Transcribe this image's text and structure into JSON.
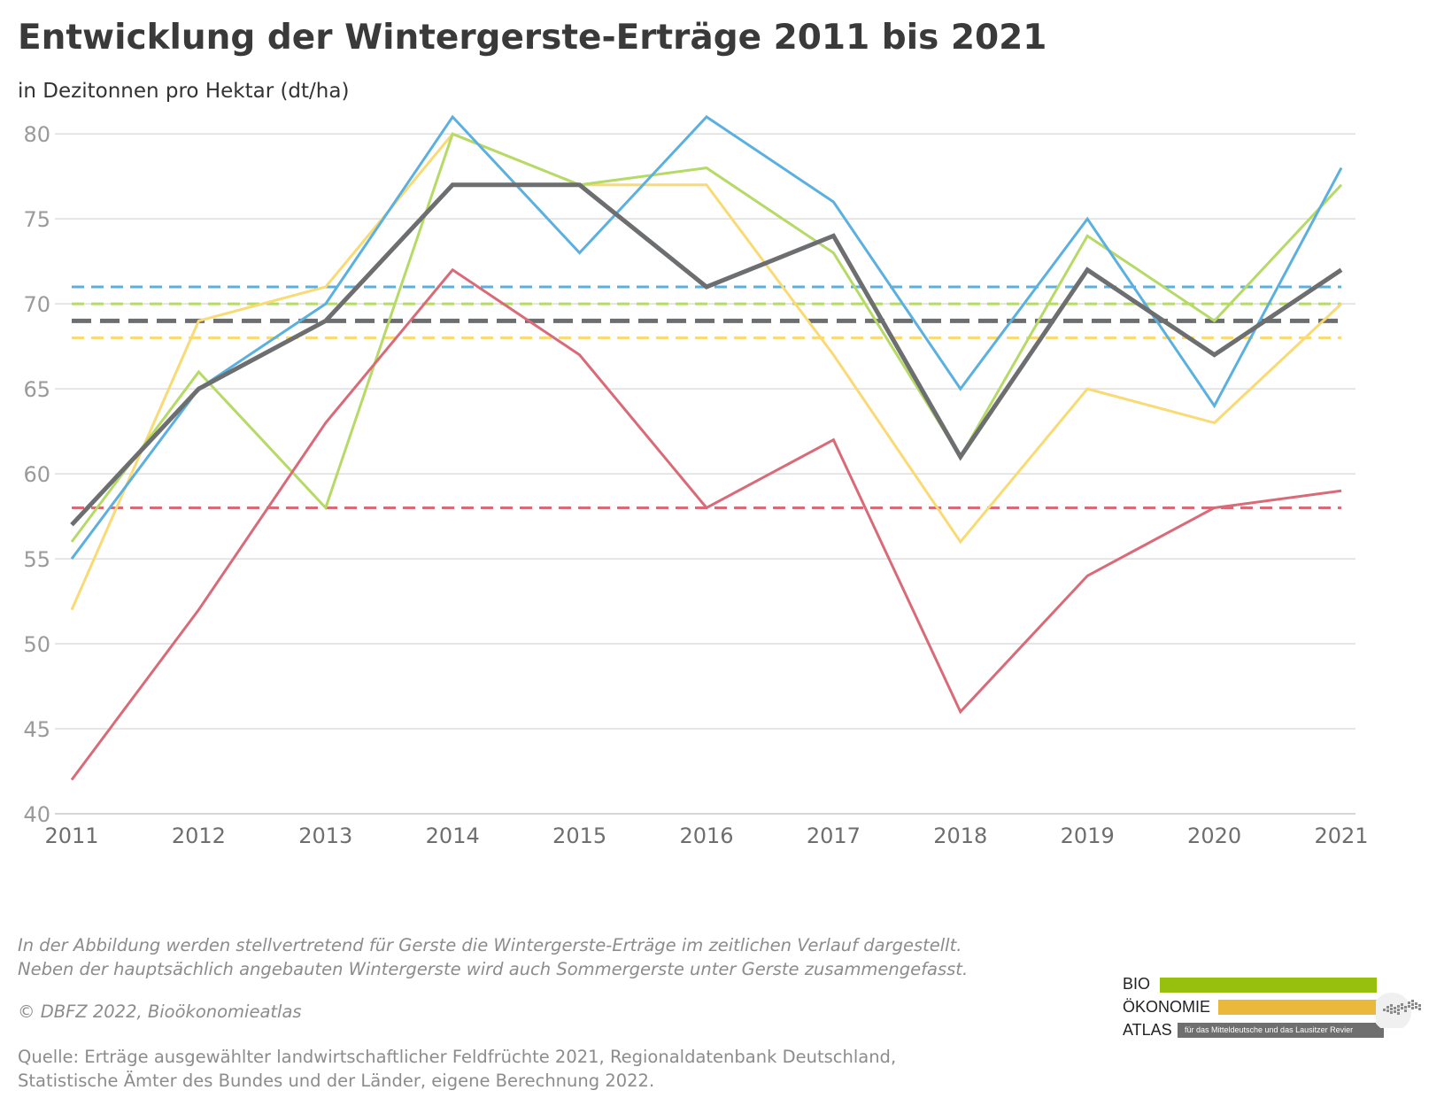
{
  "title": "Entwicklung der Wintergerste-Erträge 2011 bis 2021",
  "subtitle": "in Dezitonnen pro Hektar (dt/ha)",
  "notes": [
    "In der Abbildung werden stellvertretend für Gerste die Wintergerste-Erträge im zeitlichen Verlauf dargestellt.",
    "Neben der hauptsächlich angebauten Wintergerste wird auch Sommergerste unter Gerste zusammengefasst."
  ],
  "copyright": "© DBFZ 2022, Bioökonomieatlas",
  "source": [
    "Quelle: Erträge ausgewählter landwirtschaftlicher Feldfrüchte 2021, Regionaldatenbank Deutschland,",
    "Statistische Ämter des Bundes und der Länder, eigene Berechnung 2022."
  ],
  "logo": {
    "line1": "BIO",
    "line2": "ÖKONOMIE",
    "line3": "ATLAS",
    "tagline": "für das Mitteldeutsche und das Lausitzer Revier",
    "colors": [
      "#97bf0d",
      "#eab83b",
      "#6f6f6f"
    ]
  },
  "chart_data": {
    "type": "line",
    "x": [
      "2011",
      "2012",
      "2013",
      "2014",
      "2015",
      "2016",
      "2017",
      "2018",
      "2019",
      "2020",
      "2021"
    ],
    "ylim": [
      40,
      81
    ],
    "yticks": [
      40,
      45,
      50,
      55,
      60,
      65,
      70,
      75,
      80
    ],
    "grid": true,
    "legend": "none",
    "series": [
      {
        "color": "#f9da74",
        "width": 3,
        "values": [
          52,
          69,
          71,
          80,
          77,
          77,
          67,
          56,
          65,
          63,
          70
        ],
        "average": 68
      },
      {
        "color": "#b5da66",
        "width": 3,
        "values": [
          56,
          66,
          58,
          80,
          77,
          78,
          73,
          61,
          74,
          69,
          77
        ],
        "average": 70
      },
      {
        "color": "#5bb0e0",
        "width": 3,
        "values": [
          55,
          65,
          70,
          81,
          73,
          81,
          76,
          65,
          75,
          64,
          78
        ],
        "average": 71
      },
      {
        "color": "#d96a78",
        "width": 3,
        "values": [
          42,
          52,
          63,
          72,
          67,
          58,
          62,
          46,
          54,
          58,
          59
        ],
        "average": 58
      },
      {
        "color": "#6d6e70",
        "width": 5,
        "values": [
          57,
          65,
          69,
          77,
          77,
          71,
          74,
          61,
          72,
          67,
          72
        ],
        "average": 69
      }
    ]
  }
}
